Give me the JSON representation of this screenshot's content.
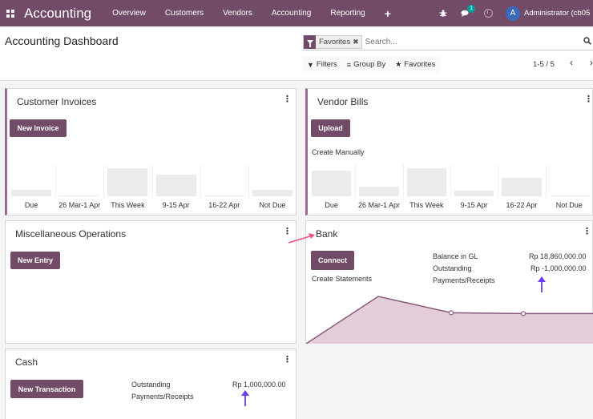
{
  "navbar": {
    "brand": "Accounting",
    "menu": [
      "Overview",
      "Customers",
      "Vendors",
      "Accounting",
      "Reporting"
    ],
    "plus": "+",
    "chat_badge": "1",
    "avatar_letter": "A",
    "user": "Administrator (cb05"
  },
  "control": {
    "title": "Accounting Dashboard",
    "facet": "Favorites",
    "search_placeholder": "Search...",
    "filters_label": "Filters",
    "groupby_label": "Group By",
    "favorites_label": "Favorites",
    "pager": "1-5 / 5"
  },
  "customer_invoices": {
    "title": "Customer Invoices",
    "button": "New Invoice",
    "chart_data": {
      "type": "bar",
      "categories": [
        "Due",
        "26 Mar-1 Apr",
        "This Week",
        "9-15 Apr",
        "16-22 Apr",
        "Not Due"
      ],
      "values": [
        8,
        1,
        35,
        27,
        1,
        8
      ],
      "ylim": [
        0,
        35
      ]
    }
  },
  "vendor_bills": {
    "title": "Vendor Bills",
    "button": "Upload",
    "link": "Create Manually",
    "chart_data": {
      "type": "bar",
      "categories": [
        "Due",
        "26 Mar-1 Apr",
        "This Week",
        "9-15 Apr",
        "16-22 Apr",
        "Not Due"
      ],
      "values": [
        32,
        12,
        35,
        7,
        23,
        1
      ],
      "ylim": [
        0,
        35
      ]
    }
  },
  "misc": {
    "title": "Miscellaneous Operations",
    "button": "New Entry"
  },
  "bank": {
    "title": "Bank",
    "button": "Connect",
    "link": "Create Statements",
    "balance_label": "Balance in GL",
    "balance_value": "Rp 18,860,000.00",
    "outstanding_label_1": "Outstanding",
    "outstanding_label_2": "Payments/Receipts",
    "outstanding_value": "Rp -1,000,000.00",
    "chart_data": {
      "type": "area",
      "x": [
        0,
        1,
        2,
        3,
        4
      ],
      "values": [
        0,
        58,
        38,
        37,
        37
      ],
      "ylim": [
        0,
        60
      ]
    }
  },
  "cash": {
    "title": "Cash",
    "button": "New Transaction",
    "outstanding_label_1": "Outstanding",
    "outstanding_label_2": "Payments/Receipts",
    "outstanding_value": "Rp 1,000,000.00"
  },
  "colors": {
    "brand": "#714b67",
    "accent_border": "#9b6b92",
    "annotation_arrow_pink": "#ef4f8a",
    "annotation_arrow_blue": "#6a3cf5"
  }
}
